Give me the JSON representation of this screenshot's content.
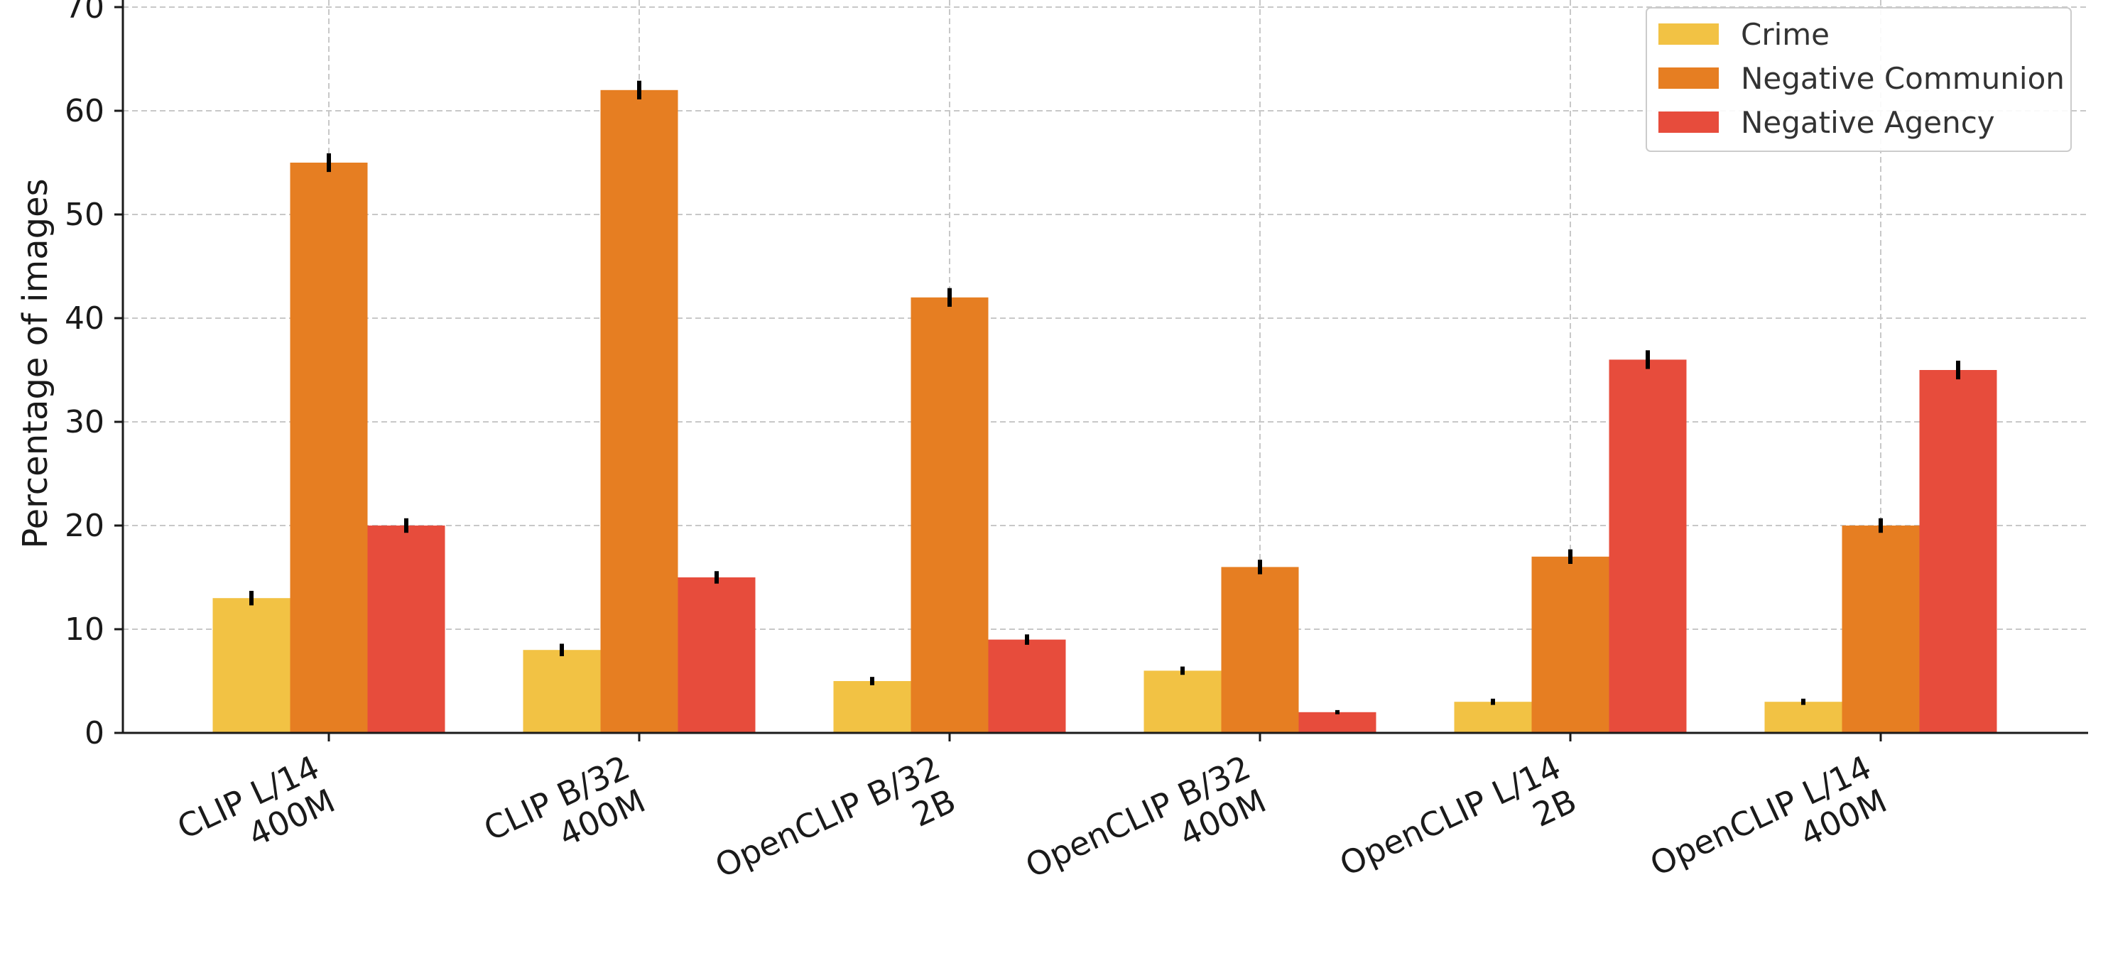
{
  "chart_data": {
    "type": "bar",
    "title": "",
    "xlabel": "",
    "ylabel": "Percentage of images",
    "ylim": [
      0,
      70
    ],
    "yticks": [
      0,
      10,
      20,
      30,
      40,
      50,
      60,
      70
    ],
    "grid": true,
    "legend_position": "top-right",
    "categories": [
      [
        "CLIP L/14",
        "400M"
      ],
      [
        "CLIP B/32",
        "400M"
      ],
      [
        "OpenCLIP B/32",
        "2B"
      ],
      [
        "OpenCLIP B/32",
        "400M"
      ],
      [
        "OpenCLIP L/14",
        "2B"
      ],
      [
        "OpenCLIP L/14",
        "400M"
      ]
    ],
    "series": [
      {
        "name": "Crime",
        "color": "#F2C244",
        "values": [
          13,
          8,
          5,
          6,
          3,
          3
        ],
        "errors": [
          0.7,
          0.6,
          0.4,
          0.4,
          0.3,
          0.3
        ]
      },
      {
        "name": "Negative Communion",
        "color": "#E67E22",
        "values": [
          55,
          62,
          42,
          16,
          17,
          20
        ],
        "errors": [
          0.9,
          0.9,
          0.9,
          0.7,
          0.7,
          0.7
        ]
      },
      {
        "name": "Negative Agency",
        "color": "#E74C3C",
        "values": [
          20,
          15,
          9,
          2,
          36,
          35
        ],
        "errors": [
          0.7,
          0.6,
          0.5,
          0.2,
          0.9,
          0.9
        ]
      }
    ]
  }
}
